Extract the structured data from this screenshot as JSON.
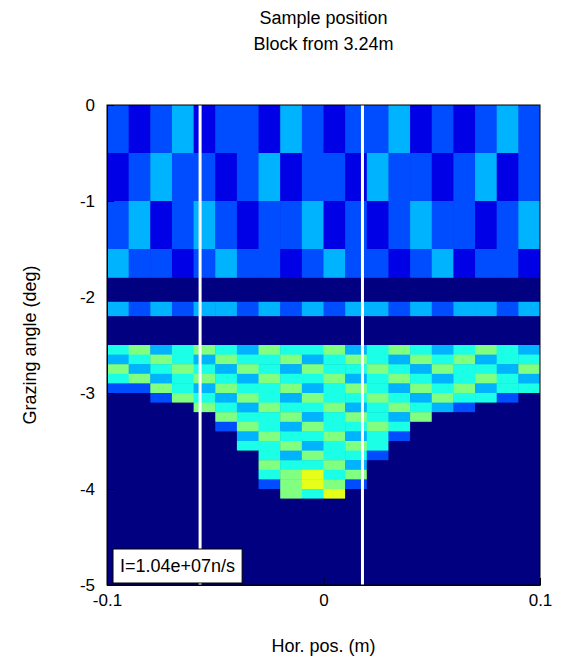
{
  "chart_data": {
    "type": "heatmap",
    "title": "Sample position",
    "subtitle": "Block from 3.24m",
    "x_label": "Hor. pos. (m)",
    "y_label": "Grazing angle (deg)",
    "annotation": "I=1.04e+07n/s",
    "xlim": [
      -0.1,
      0.1
    ],
    "xticks": [
      -0.1,
      0,
      0.1
    ],
    "ylim": [
      -5,
      0
    ],
    "yticks": [
      0,
      -1,
      -2,
      -3,
      -4,
      -5
    ],
    "color": "jet",
    "color_range": [
      0,
      10
    ],
    "vlines": [
      -0.057,
      0.018
    ],
    "x_edges": [
      -0.1,
      -0.09,
      -0.08,
      -0.07,
      -0.06,
      -0.05,
      -0.04,
      -0.03,
      -0.02,
      -0.01,
      0,
      0.01,
      0.02,
      0.03,
      0.04,
      0.05,
      0.06,
      0.07,
      0.08,
      0.09,
      0.1
    ],
    "y_edges": [
      0,
      -0.5,
      -1,
      -1.5,
      -1.8,
      -2.05,
      -2.2,
      -2.5,
      -2.6,
      -2.7,
      -2.8,
      -2.9,
      -3,
      -3.1,
      -3.2,
      -3.3,
      -3.4,
      -3.5,
      -3.6,
      -3.7,
      -3.8,
      -3.9,
      -4,
      -4.1,
      -5
    ],
    "cells": [
      [
        2,
        1,
        2,
        3,
        1,
        2,
        2,
        1,
        3,
        2,
        1,
        2,
        2,
        3,
        1,
        2,
        1,
        2,
        3,
        2
      ],
      [
        1,
        2,
        3,
        2,
        2,
        1,
        2,
        3,
        1,
        2,
        2,
        1,
        3,
        2,
        2,
        1,
        2,
        3,
        1,
        2
      ],
      [
        2,
        3,
        1,
        2,
        3,
        2,
        1,
        2,
        2,
        3,
        1,
        2,
        1,
        2,
        3,
        2,
        2,
        1,
        2,
        3
      ],
      [
        3,
        2,
        2,
        1,
        2,
        3,
        2,
        2,
        1,
        2,
        3,
        2,
        2,
        1,
        2,
        3,
        1,
        2,
        2,
        1
      ],
      [
        0,
        0,
        0,
        0,
        0,
        0,
        0,
        0,
        0,
        0,
        0,
        0,
        0,
        0,
        0,
        0,
        0,
        0,
        0,
        0
      ],
      [
        3,
        2,
        3,
        2,
        3,
        3,
        2,
        3,
        2,
        3,
        2,
        3,
        3,
        2,
        3,
        2,
        3,
        3,
        2,
        3
      ],
      [
        0,
        0,
        0,
        0,
        0,
        0,
        0,
        0,
        0,
        0,
        0,
        0,
        0,
        0,
        0,
        0,
        0,
        0,
        0,
        0
      ],
      [
        4,
        5,
        3,
        4,
        5,
        4,
        3,
        5,
        4,
        4,
        5,
        3,
        4,
        5,
        4,
        3,
        4,
        5,
        4,
        3
      ],
      [
        3,
        4,
        5,
        4,
        3,
        5,
        4,
        4,
        5,
        3,
        4,
        5,
        4,
        3,
        5,
        4,
        5,
        3,
        4,
        4
      ],
      [
        5,
        3,
        4,
        5,
        4,
        3,
        5,
        4,
        3,
        5,
        4,
        4,
        5,
        4,
        3,
        5,
        4,
        4,
        3,
        5
      ],
      [
        4,
        5,
        3,
        4,
        5,
        4,
        3,
        5,
        4,
        4,
        5,
        3,
        4,
        5,
        4,
        3,
        4,
        5,
        4,
        3
      ],
      [
        2,
        2,
        5,
        4,
        3,
        5,
        4,
        4,
        5,
        3,
        4,
        5,
        4,
        3,
        5,
        4,
        5,
        3,
        4,
        4
      ],
      [
        0,
        0,
        2,
        5,
        4,
        3,
        5,
        4,
        3,
        5,
        4,
        4,
        5,
        4,
        3,
        5,
        4,
        4,
        2,
        0
      ],
      [
        0,
        0,
        0,
        0,
        5,
        4,
        3,
        5,
        4,
        4,
        5,
        3,
        4,
        5,
        4,
        3,
        2,
        0,
        0,
        0
      ],
      [
        0,
        0,
        0,
        0,
        0,
        5,
        4,
        4,
        5,
        3,
        4,
        5,
        4,
        3,
        5,
        0,
        0,
        0,
        0,
        0
      ],
      [
        0,
        0,
        0,
        0,
        0,
        2,
        5,
        4,
        3,
        5,
        4,
        4,
        5,
        4,
        0,
        0,
        0,
        0,
        0,
        0
      ],
      [
        0,
        0,
        0,
        0,
        0,
        0,
        3,
        5,
        4,
        4,
        5,
        3,
        4,
        2,
        0,
        0,
        0,
        0,
        0,
        0
      ],
      [
        0,
        0,
        0,
        0,
        0,
        0,
        4,
        4,
        5,
        3,
        4,
        5,
        4,
        0,
        0,
        0,
        0,
        0,
        0,
        0
      ],
      [
        0,
        0,
        0,
        0,
        0,
        0,
        0,
        4,
        3,
        5,
        4,
        4,
        2,
        0,
        0,
        0,
        0,
        0,
        0,
        0
      ],
      [
        0,
        0,
        0,
        0,
        0,
        0,
        0,
        5,
        4,
        4,
        5,
        3,
        0,
        0,
        0,
        0,
        0,
        0,
        0,
        0
      ],
      [
        0,
        0,
        0,
        0,
        0,
        0,
        0,
        4,
        5,
        6,
        4,
        5,
        0,
        0,
        0,
        0,
        0,
        0,
        0,
        0
      ],
      [
        0,
        0,
        0,
        0,
        0,
        0,
        0,
        2,
        5,
        6,
        5,
        2,
        0,
        0,
        0,
        0,
        0,
        0,
        0,
        0
      ],
      [
        0,
        0,
        0,
        0,
        0,
        0,
        0,
        0,
        5,
        4,
        6,
        0,
        0,
        0,
        0,
        0,
        0,
        0,
        0,
        0
      ],
      [
        0,
        0,
        0,
        0,
        0,
        0,
        0,
        0,
        0,
        0,
        0,
        0,
        0,
        0,
        0,
        0,
        0,
        0,
        0,
        0
      ]
    ]
  }
}
